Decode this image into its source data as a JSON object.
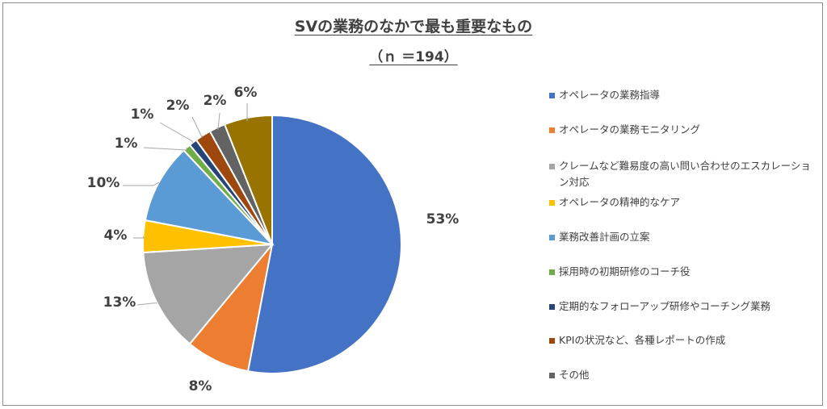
{
  "chart_data": {
    "type": "pie",
    "title": "SVの業務のなかで最も重要なもの",
    "subtitle": "（ｎ ＝194）",
    "categories": [
      "オペレータの業務指導",
      "オペレータの業務モニタリング",
      "クレームなど難易度の高い問い合わせのエスカレーション対応",
      "オペレータの精神的なケア",
      "業務改善計画の立案",
      "採用時の初期研修のコーチ役",
      "定期的なフォローアップ研修やコーチング業務",
      "KPIの状況など、各種レポートの作成",
      "その他",
      ""
    ],
    "values": [
      53,
      8,
      13,
      4,
      10,
      1,
      1,
      2,
      2,
      6
    ],
    "data_labels": [
      "53%",
      "8%",
      "13%",
      "4%",
      "10%",
      "1%",
      "1%",
      "2%",
      "2%",
      "6%"
    ],
    "colors": [
      "#4472c4",
      "#ed7d31",
      "#a5a5a5",
      "#ffc000",
      "#5b9bd5",
      "#70ad47",
      "#264478",
      "#9e480e",
      "#636363",
      "#997300"
    ],
    "legend_position": "right"
  }
}
